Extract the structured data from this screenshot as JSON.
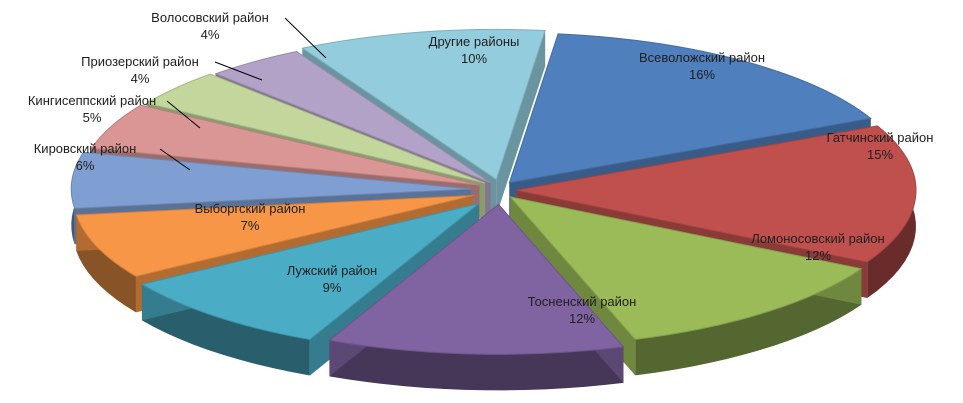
{
  "chart_data": {
    "type": "pie",
    "style": "3d-exploded",
    "title": "",
    "unit": "%",
    "slices": [
      {
        "label": "Всеволожский район",
        "value": 16,
        "value_text": "16%",
        "color": "#4f7fbd"
      },
      {
        "label": "Гатчинский район",
        "value": 15,
        "value_text": "15%",
        "color": "#c0504d"
      },
      {
        "label": "Ломоносовский район",
        "value": 12,
        "value_text": "12%",
        "color": "#9bbb59"
      },
      {
        "label": "Тосненский район",
        "value": 12,
        "value_text": "12%",
        "color": "#8064a2"
      },
      {
        "label": "Лужский район",
        "value": 9,
        "value_text": "9%",
        "color": "#4bacc6"
      },
      {
        "label": "Выборгский район",
        "value": 7,
        "value_text": "7%",
        "color": "#f79646"
      },
      {
        "label": "Кировский район",
        "value": 6,
        "value_text": "6%",
        "color": "#7f9fd2"
      },
      {
        "label": "Кингисеппский район",
        "value": 5,
        "value_text": "5%",
        "color": "#d99694"
      },
      {
        "label": "Приозерский район",
        "value": 4,
        "value_text": "4%",
        "color": "#c3d69b"
      },
      {
        "label": "Волосовский район",
        "value": 4,
        "value_text": "4%",
        "color": "#b3a2c7"
      },
      {
        "label": "Другие районы",
        "value": 10,
        "value_text": "10%",
        "color": "#93cddd"
      }
    ]
  }
}
